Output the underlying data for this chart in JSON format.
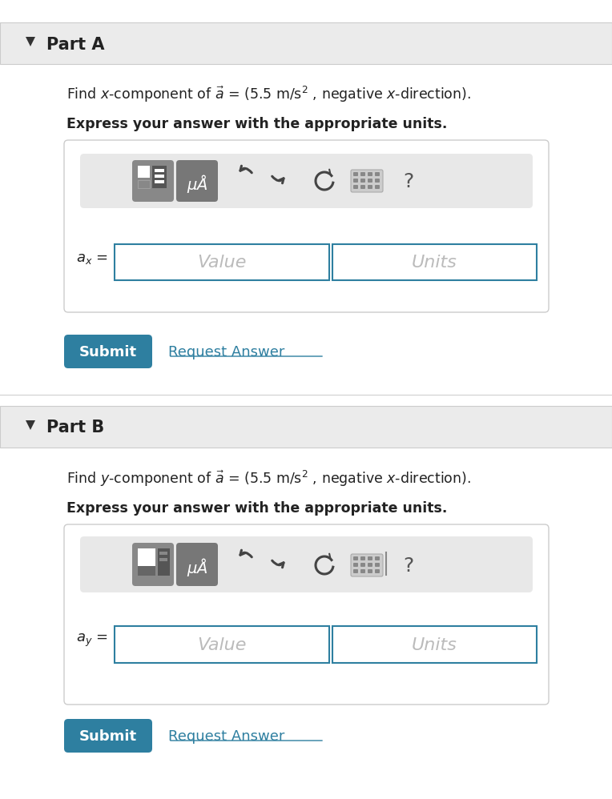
{
  "bg_color": "#f5f5f5",
  "white": "#ffffff",
  "header_bg": "#ebebeb",
  "border_color": "#cccccc",
  "input_border": "#2e7fa0",
  "submit_bg": "#2e7fa0",
  "submit_text": "#ffffff",
  "request_link": "#2e7fa0",
  "toolbar_bg": "#d0d0d0",
  "icon_bg": "#7a7a7a",
  "part_a_label": "Part A",
  "part_b_label": "Part B",
  "part_a_find": "Find $x$-component of $\\vec{a}$ = (5.5 m/s$^2$ , negative $x$-direction).",
  "part_b_find": "Find $y$-component of $\\vec{a}$ = (5.5 m/s$^2$ , negative $x$-direction).",
  "express": "Express your answer with the appropriate units.",
  "value_placeholder": "Value",
  "units_placeholder": "Units",
  "submit_label": "Submit",
  "request_label": "Request Answer",
  "ax_label": "$a_x$ =",
  "ay_label": "$a_y$ ="
}
